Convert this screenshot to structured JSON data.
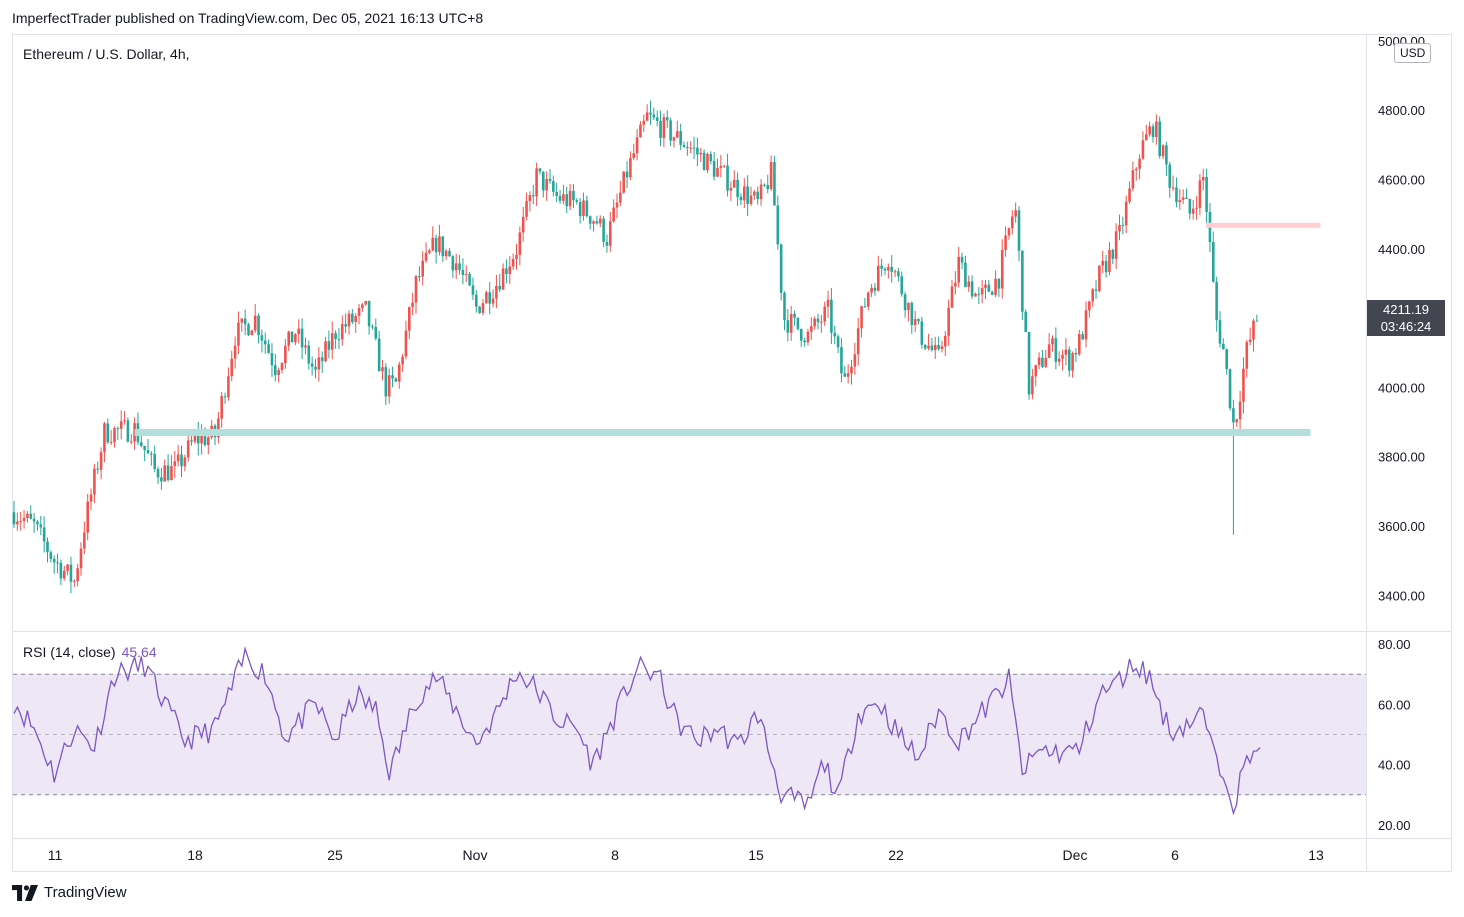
{
  "header": {
    "publisher_line": "ImperfectTrader published on TradingView.com, Dec 05, 2021 16:13 UTC+8"
  },
  "legend": {
    "symbol": "Ethereum / U.S. Dollar, 4h,"
  },
  "rsi_legend": {
    "label": "RSI (14, close)",
    "value": "45.64"
  },
  "currency_badge": "USD",
  "last_price": {
    "price": "4211.19",
    "countdown": "03:46:24"
  },
  "footer": {
    "brand": "TradingView"
  },
  "colors": {
    "up": "#ef5350",
    "down": "#26a69a",
    "rsi_line": "#7e57c2",
    "rsi_band": "#ede7f6",
    "support": "#b2dfdb",
    "resistance": "#ffcdd2"
  },
  "chart_data": [
    {
      "type": "candlestick",
      "title": "Ethereum / U.S. Dollar, 4h,",
      "y_ticks": [
        "5000.00",
        "4800.00",
        "4600.00",
        "4400.00",
        "4200.00",
        "4000.00",
        "3800.00",
        "3600.00",
        "3400.00"
      ],
      "ylim": [
        3300,
        5020
      ],
      "x_ticks": [
        "11",
        "18",
        "25",
        "Nov",
        "8",
        "15",
        "22",
        "Dec",
        "6",
        "13"
      ],
      "anchors": [
        {
          "day": 0,
          "price": 3640
        },
        {
          "day": 1,
          "price": 3600
        },
        {
          "day": 2,
          "price": 3500
        },
        {
          "day": 3,
          "price": 3440
        },
        {
          "day": 3.5,
          "price": 3600
        },
        {
          "day": 4.5,
          "price": 3870
        },
        {
          "day": 6,
          "price": 3880
        },
        {
          "day": 7,
          "price": 3760
        },
        {
          "day": 8,
          "price": 3760
        },
        {
          "day": 9,
          "price": 3850
        },
        {
          "day": 10,
          "price": 3860
        },
        {
          "day": 11,
          "price": 4150
        },
        {
          "day": 12,
          "price": 4200
        },
        {
          "day": 13,
          "price": 4060
        },
        {
          "day": 14,
          "price": 4160
        },
        {
          "day": 15,
          "price": 4040
        },
        {
          "day": 16,
          "price": 4160
        },
        {
          "day": 17.5,
          "price": 4220
        },
        {
          "day": 18.5,
          "price": 4000
        },
        {
          "day": 19,
          "price": 4010
        },
        {
          "day": 20,
          "price": 4300
        },
        {
          "day": 21,
          "price": 4420
        },
        {
          "day": 22,
          "price": 4360
        },
        {
          "day": 23,
          "price": 4230
        },
        {
          "day": 24,
          "price": 4300
        },
        {
          "day": 25,
          "price": 4400
        },
        {
          "day": 26,
          "price": 4610
        },
        {
          "day": 27,
          "price": 4550
        },
        {
          "day": 28,
          "price": 4530
        },
        {
          "day": 29,
          "price": 4480
        },
        {
          "day": 29.5,
          "price": 4430
        },
        {
          "day": 30.5,
          "price": 4620
        },
        {
          "day": 31.5,
          "price": 4780
        },
        {
          "day": 32.5,
          "price": 4740
        },
        {
          "day": 33.5,
          "price": 4700
        },
        {
          "day": 34.5,
          "price": 4650
        },
        {
          "day": 35.5,
          "price": 4600
        },
        {
          "day": 37,
          "price": 4530
        },
        {
          "day": 37.7,
          "price": 4620
        },
        {
          "day": 38.3,
          "price": 4200
        },
        {
          "day": 39.5,
          "price": 4150
        },
        {
          "day": 40.5,
          "price": 4220
        },
        {
          "day": 41.3,
          "price": 4010
        },
        {
          "day": 42.5,
          "price": 4280
        },
        {
          "day": 43.5,
          "price": 4380
        },
        {
          "day": 45,
          "price": 4160
        },
        {
          "day": 46,
          "price": 4080
        },
        {
          "day": 47,
          "price": 4360
        },
        {
          "day": 48,
          "price": 4250
        },
        {
          "day": 49,
          "price": 4320
        },
        {
          "day": 49.8,
          "price": 4530
        },
        {
          "day": 50.5,
          "price": 4000
        },
        {
          "day": 51.5,
          "price": 4120
        },
        {
          "day": 52.5,
          "price": 4080
        },
        {
          "day": 53,
          "price": 4130
        },
        {
          "day": 54,
          "price": 4320
        },
        {
          "day": 55,
          "price": 4440
        },
        {
          "day": 56,
          "price": 4680
        },
        {
          "day": 56.7,
          "price": 4760
        },
        {
          "day": 57.5,
          "price": 4600
        },
        {
          "day": 58.5,
          "price": 4500
        },
        {
          "day": 59.2,
          "price": 4610
        },
        {
          "day": 59.8,
          "price": 4200
        },
        {
          "day": 60.2,
          "price": 4100
        },
        {
          "day": 60.7,
          "price": 3880
        },
        {
          "day": 61.3,
          "price": 4100
        },
        {
          "day": 61.9,
          "price": 4211
        }
      ],
      "levels": [
        {
          "name": "support",
          "price": 3870,
          "from_day": 6,
          "to_day": 64.5
        },
        {
          "name": "resistance",
          "price": 4468,
          "from_day": 59.3,
          "to_day": 65
        }
      ]
    },
    {
      "type": "line",
      "title": "RSI (14, close)",
      "y_ticks": [
        "80.00",
        "60.00",
        "40.00",
        "20.00"
      ],
      "ylim": [
        16,
        84
      ],
      "band": [
        30,
        70
      ],
      "midline": 50,
      "anchors": [
        {
          "day": 0,
          "value": 61
        },
        {
          "day": 1,
          "value": 52
        },
        {
          "day": 2,
          "value": 37
        },
        {
          "day": 3,
          "value": 52
        },
        {
          "day": 4,
          "value": 46
        },
        {
          "day": 5,
          "value": 70
        },
        {
          "day": 6.5,
          "value": 73
        },
        {
          "day": 7.5,
          "value": 60
        },
        {
          "day": 8.5,
          "value": 48
        },
        {
          "day": 10,
          "value": 52
        },
        {
          "day": 11.5,
          "value": 76
        },
        {
          "day": 12.5,
          "value": 70
        },
        {
          "day": 13.5,
          "value": 49
        },
        {
          "day": 15,
          "value": 60
        },
        {
          "day": 16,
          "value": 48
        },
        {
          "day": 17,
          "value": 63
        },
        {
          "day": 18,
          "value": 58
        },
        {
          "day": 18.7,
          "value": 37
        },
        {
          "day": 20,
          "value": 62
        },
        {
          "day": 21,
          "value": 69
        },
        {
          "day": 22,
          "value": 58
        },
        {
          "day": 23,
          "value": 47
        },
        {
          "day": 24,
          "value": 57
        },
        {
          "day": 25,
          "value": 71
        },
        {
          "day": 26,
          "value": 65
        },
        {
          "day": 27,
          "value": 55
        },
        {
          "day": 28,
          "value": 52
        },
        {
          "day": 28.8,
          "value": 40
        },
        {
          "day": 30,
          "value": 58
        },
        {
          "day": 31,
          "value": 72
        },
        {
          "day": 32,
          "value": 70
        },
        {
          "day": 33,
          "value": 54
        },
        {
          "day": 34,
          "value": 48
        },
        {
          "day": 35,
          "value": 52
        },
        {
          "day": 36,
          "value": 46
        },
        {
          "day": 37,
          "value": 57
        },
        {
          "day": 38.2,
          "value": 30
        },
        {
          "day": 39.5,
          "value": 26
        },
        {
          "day": 40.3,
          "value": 41
        },
        {
          "day": 41,
          "value": 29
        },
        {
          "day": 42,
          "value": 57
        },
        {
          "day": 43,
          "value": 61
        },
        {
          "day": 44,
          "value": 50
        },
        {
          "day": 45,
          "value": 42
        },
        {
          "day": 46,
          "value": 58
        },
        {
          "day": 47,
          "value": 48
        },
        {
          "day": 48.5,
          "value": 60
        },
        {
          "day": 49.5,
          "value": 68
        },
        {
          "day": 50.2,
          "value": 37
        },
        {
          "day": 51,
          "value": 45
        },
        {
          "day": 52,
          "value": 44
        },
        {
          "day": 53,
          "value": 45
        },
        {
          "day": 54,
          "value": 63
        },
        {
          "day": 55,
          "value": 68
        },
        {
          "day": 55.8,
          "value": 74
        },
        {
          "day": 56.5,
          "value": 69
        },
        {
          "day": 57.5,
          "value": 51
        },
        {
          "day": 58.5,
          "value": 54
        },
        {
          "day": 59.2,
          "value": 57
        },
        {
          "day": 59.7,
          "value": 42
        },
        {
          "day": 60.3,
          "value": 37
        },
        {
          "day": 60.7,
          "value": 27
        },
        {
          "day": 61.3,
          "value": 41
        },
        {
          "day": 62,
          "value": 45.64
        }
      ]
    }
  ]
}
